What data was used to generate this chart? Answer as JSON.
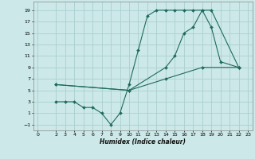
{
  "xlabel": "Humidex (Indice chaleur)",
  "bg_color": "#cce8e8",
  "grid_color": "#aacfcf",
  "line_color": "#1e6b5e",
  "xlim": [
    -0.5,
    23.5
  ],
  "ylim": [
    -2,
    20.5
  ],
  "xticks": [
    0,
    2,
    3,
    4,
    5,
    6,
    7,
    8,
    9,
    10,
    11,
    12,
    13,
    14,
    15,
    16,
    17,
    18,
    19,
    20,
    21,
    22,
    23
  ],
  "yticks": [
    -1,
    1,
    3,
    5,
    7,
    9,
    11,
    13,
    15,
    17,
    19
  ],
  "line1_x": [
    2,
    3,
    4,
    5,
    6,
    7,
    8,
    9,
    10,
    11,
    12,
    13,
    14,
    15,
    16,
    17,
    18,
    19,
    22
  ],
  "line1_y": [
    3,
    3,
    3,
    2,
    2,
    1,
    -1,
    1,
    6,
    12,
    18,
    19,
    19,
    19,
    19,
    19,
    19,
    19,
    9
  ],
  "line2_x": [
    2,
    10,
    14,
    15,
    16,
    17,
    18,
    19,
    20,
    22
  ],
  "line2_y": [
    6,
    5,
    9,
    11,
    15,
    16,
    19,
    16,
    10,
    9
  ],
  "line3_x": [
    2,
    10,
    14,
    18,
    22
  ],
  "line3_y": [
    6,
    5,
    7,
    9,
    9
  ]
}
